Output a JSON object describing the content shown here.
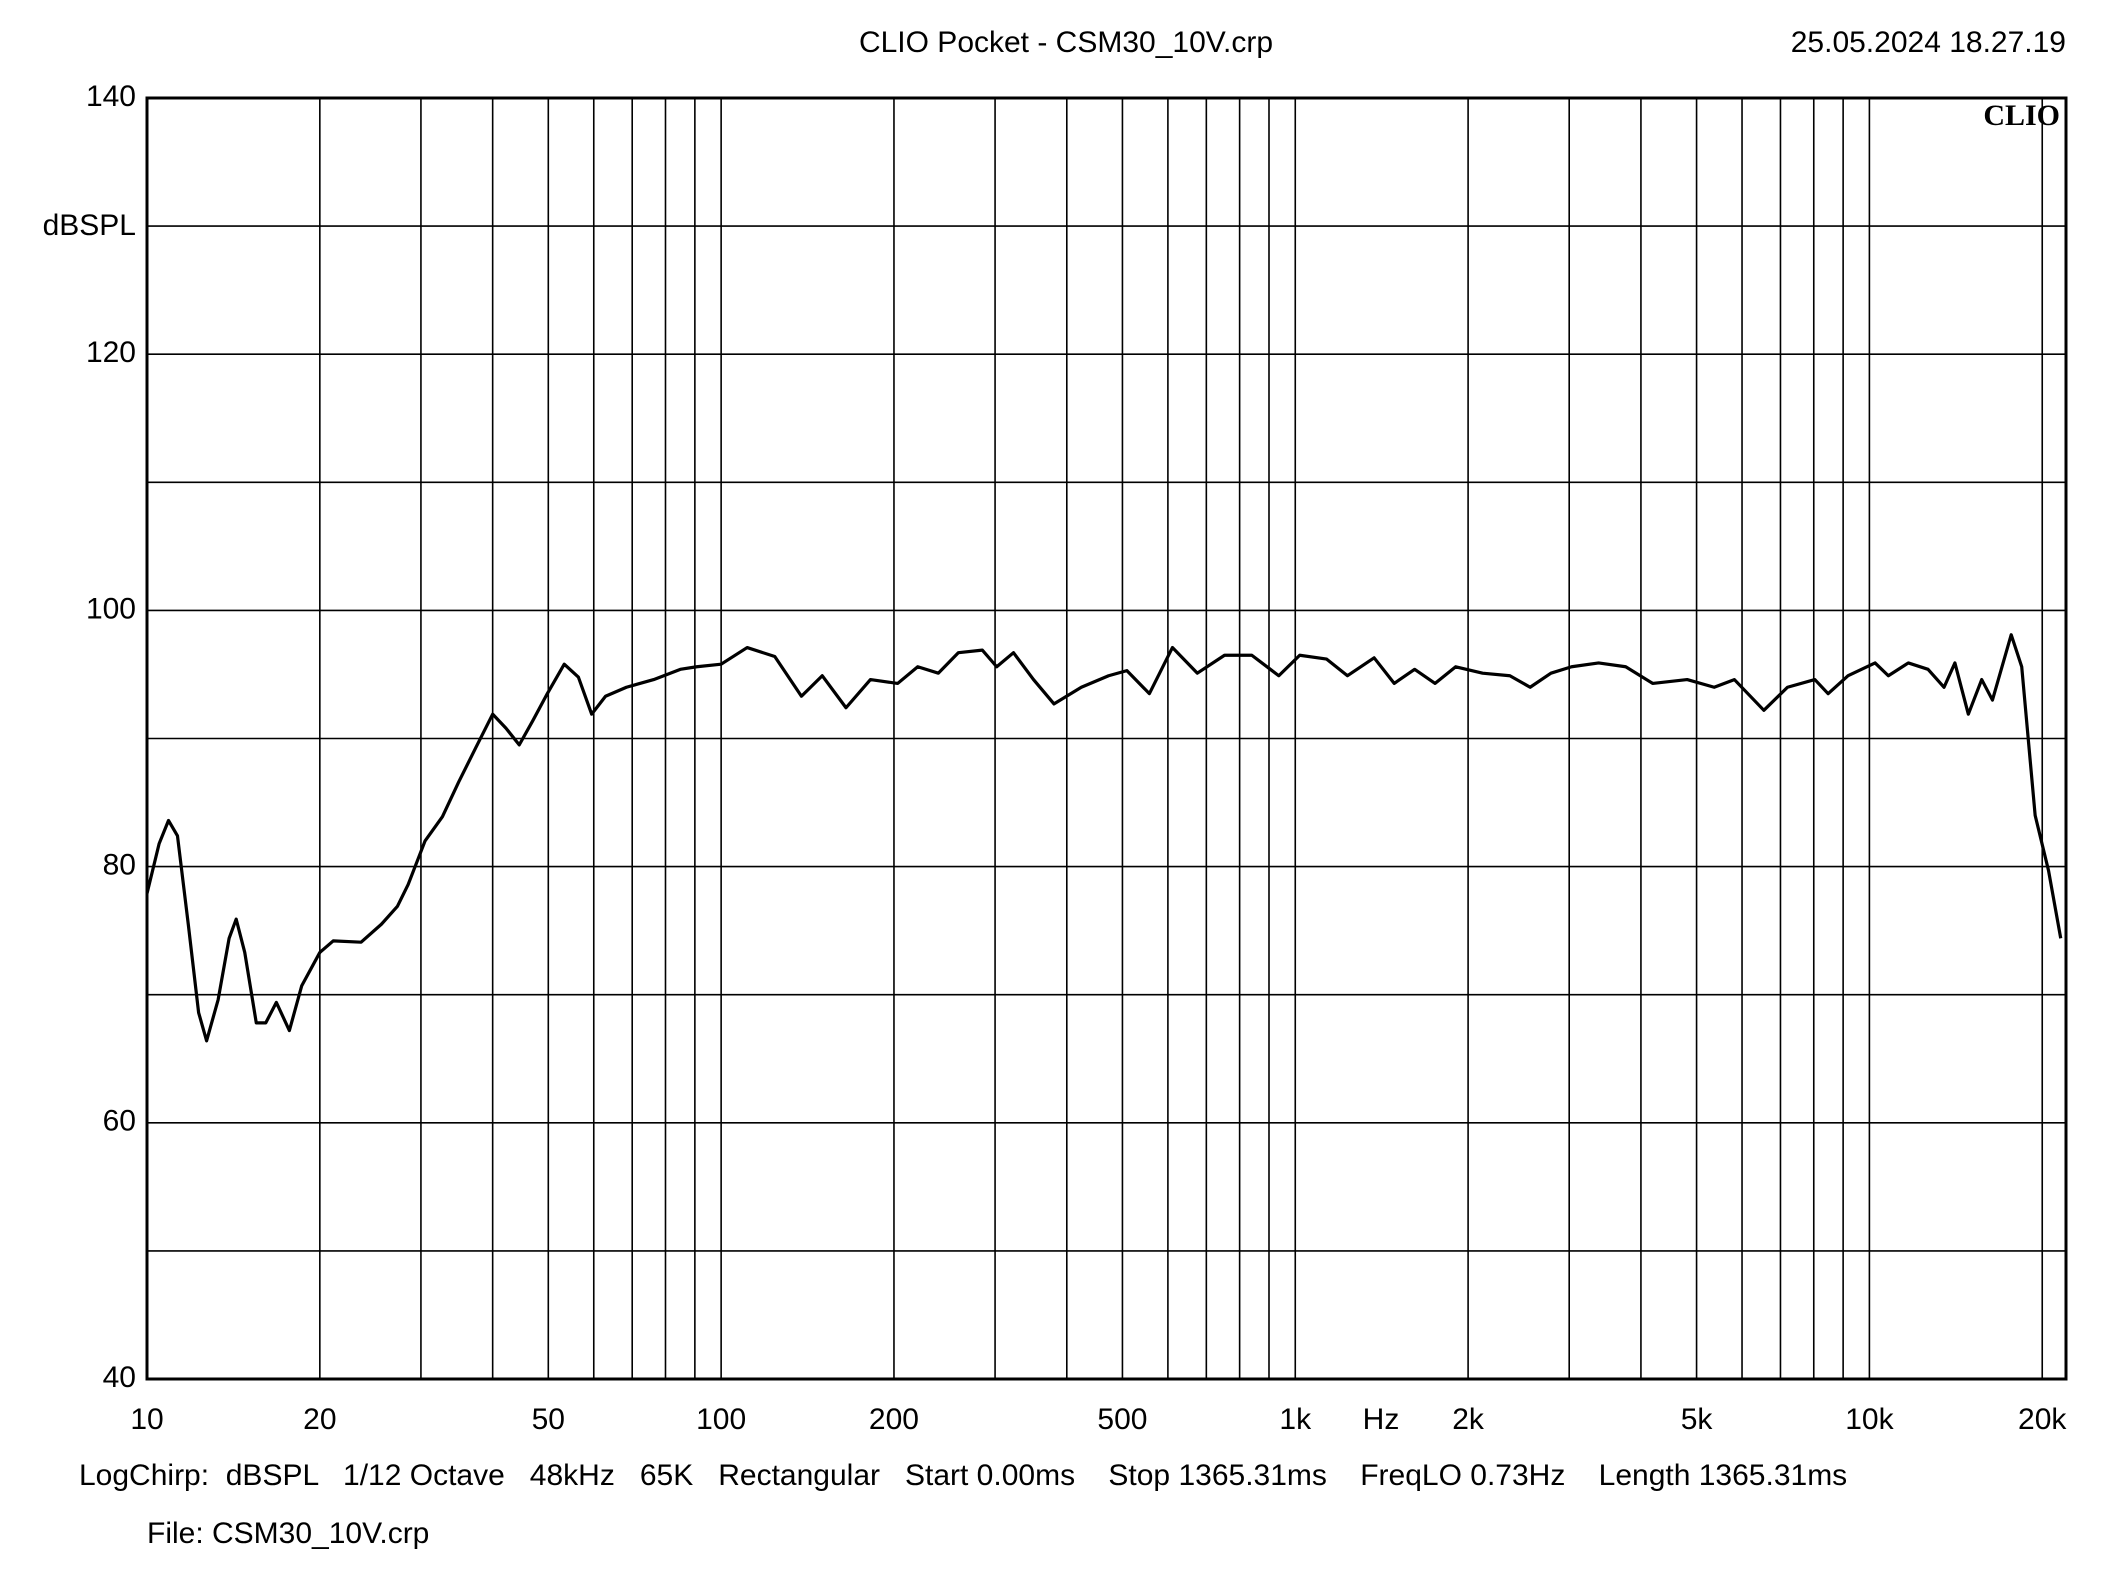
{
  "chart_data": {
    "type": "line",
    "title": "CLIO Pocket - CSM30_10V.crp",
    "timestamp": "25.05.2024 18.27.19",
    "logo": "CLIO",
    "y_label": "dBSPL",
    "x_label": "Hz",
    "footer": "LogChirp:  dBSPL   1/12 Octave   48kHz   65K   Rectangular   Start 0.00ms    Stop 1365.31ms    FreqLO 0.73Hz    Length 1365.31ms",
    "file": "File: CSM30_10V.crp",
    "x_scale": "log",
    "xlim": [
      10,
      22000
    ],
    "ylim": [
      40,
      140
    ],
    "xticks": [
      10,
      20,
      50,
      100,
      200,
      500,
      {
        "value": 1000,
        "label": "1k"
      },
      {
        "value": 2000,
        "label": "2k"
      },
      {
        "value": 5000,
        "label": "5k"
      },
      {
        "value": 10000,
        "label": "10k"
      },
      {
        "value": 20000,
        "label": "20k"
      }
    ],
    "x_minor_ticks": [
      30,
      40,
      60,
      70,
      80,
      90,
      300,
      400,
      600,
      700,
      800,
      900,
      3000,
      4000,
      6000,
      7000,
      8000,
      9000
    ],
    "yticks": [
      40,
      60,
      80,
      100,
      120,
      140
    ],
    "y_minor_ticks": [
      50,
      70,
      90,
      110,
      130
    ],
    "grid": true,
    "color": "#000000",
    "x": [
      10,
      10.5,
      10.9,
      11.3,
      11.8,
      12.3,
      12.7,
      13.3,
      13.9,
      14.3,
      14.8,
      15.5,
      16.1,
      16.8,
      17.7,
      18.6,
      20,
      21.1,
      23.6,
      25.6,
      27.3,
      28.5,
      30.5,
      32.7,
      34.9,
      37.4,
      40,
      42.2,
      44.5,
      47,
      49.8,
      53.3,
      56.4,
      59.5,
      62.9,
      68.4,
      76.3,
      84.9,
      90.7,
      100,
      111,
      124,
      138,
      150,
      165,
      182,
      203,
      220,
      239,
      259,
      285,
      302,
      323,
      350,
      380,
      424,
      473,
      509,
      557,
      611,
      675,
      753,
      840,
      936,
      1018,
      1134,
      1233,
      1372,
      1487,
      1614,
      1752,
      1903,
      2120,
      2365,
      2565,
      2788,
      3029,
      3376,
      3763,
      4193,
      4815,
      5366,
      5818,
      6549,
      7200,
      8035,
      8474,
      9180,
      10230,
      10790,
      11690,
      12650,
      13490,
      14090,
      14870,
      15690,
      16380,
      17660,
      18420,
      19440,
      20510,
      21540
    ],
    "values": [
      77.9,
      81.8,
      83.6,
      82.4,
      75.5,
      68.6,
      66.4,
      69.6,
      74.4,
      75.9,
      73.3,
      67.8,
      67.8,
      69.4,
      67.2,
      70.7,
      73.3,
      74.2,
      74.1,
      75.5,
      76.9,
      78.6,
      82.0,
      83.9,
      86.6,
      89.3,
      91.9,
      90.8,
      89.5,
      91.4,
      93.5,
      95.8,
      94.8,
      91.9,
      93.3,
      94.0,
      94.6,
      95.4,
      95.6,
      95.8,
      97.1,
      96.4,
      93.3,
      94.9,
      92.4,
      94.6,
      94.3,
      95.6,
      95.1,
      96.7,
      96.9,
      95.6,
      96.7,
      94.6,
      92.7,
      94.0,
      94.9,
      95.3,
      93.5,
      97.1,
      95.1,
      96.5,
      96.5,
      94.9,
      96.5,
      96.2,
      94.9,
      96.3,
      94.3,
      95.4,
      94.3,
      95.6,
      95.1,
      94.9,
      94.0,
      95.1,
      95.6,
      95.9,
      95.6,
      94.3,
      94.6,
      94.0,
      94.6,
      92.2,
      94.0,
      94.6,
      93.5,
      94.9,
      95.9,
      94.9,
      95.9,
      95.4,
      94.0,
      95.9,
      91.9,
      94.6,
      93.0,
      98.1,
      95.6,
      84.0,
      79.7,
      74.4
    ]
  }
}
